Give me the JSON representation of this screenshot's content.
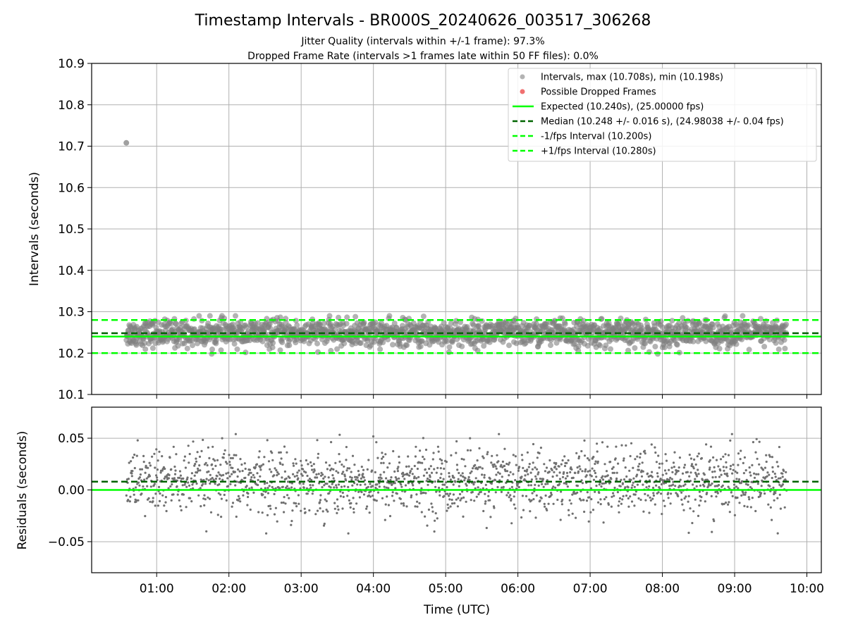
{
  "chart_data": [
    {
      "type": "scatter",
      "title": "Timestamp Intervals - BR000S_20240626_003517_306268",
      "subtitle_lines": [
        "Jitter Quality (intervals within +/-1 frame): 97.3%",
        "Dropped Frame Rate (intervals >1 frames late within 50 FF files): 0.0%"
      ],
      "ylabel": "Intervals (seconds)",
      "ylim": [
        10.1,
        10.9
      ],
      "yticks": [
        10.1,
        10.2,
        10.3,
        10.4,
        10.5,
        10.6,
        10.7,
        10.8,
        10.9
      ],
      "ytick_labels": [
        "10.1",
        "10.2",
        "10.3",
        "10.4",
        "10.5",
        "10.6",
        "10.7",
        "10.8",
        "10.9"
      ],
      "xlim_hours": [
        0.1,
        10.2
      ],
      "grid": true,
      "legend_position": "top-right",
      "series": [
        {
          "name": "Intervals, max (10.708s), min (10.198s)",
          "kind": "scatter",
          "color": "#808080",
          "x_range_hours": [
            0.58,
            9.72
          ],
          "center": 10.248,
          "spread": 0.016,
          "min": 10.198,
          "max": 10.708,
          "outliers": [
            {
              "x_hours": 0.58,
              "y": 10.708
            }
          ]
        },
        {
          "name": "Possible Dropped Frames",
          "kind": "scatter",
          "color": "#f07070",
          "points": []
        }
      ],
      "reference_lines": [
        {
          "name": "Expected (10.240s), (25.00000 fps)",
          "y": 10.24,
          "color": "#00ff00",
          "style": "solid"
        },
        {
          "name": "Median (10.248 +/- 0.016 s), (24.98038 +/- 0.04 fps)",
          "y": 10.248,
          "color": "#006400",
          "style": "dashed"
        },
        {
          "name": "-1/fps Interval (10.200s)",
          "y": 10.2,
          "color": "#00ff00",
          "style": "dashed"
        },
        {
          "name": "+1/fps Interval (10.280s)",
          "y": 10.28,
          "color": "#00ff00",
          "style": "dashed"
        }
      ]
    },
    {
      "type": "scatter",
      "ylabel": "Residuals (seconds)",
      "xlabel": "Time (UTC)",
      "ylim": [
        -0.08,
        0.08
      ],
      "yticks": [
        -0.05,
        0.0,
        0.05
      ],
      "ytick_labels": [
        "−0.05",
        "0.00",
        "0.05"
      ],
      "xlim_hours": [
        0.1,
        10.2
      ],
      "xticks_hours": [
        1,
        2,
        3,
        4,
        5,
        6,
        7,
        8,
        9,
        10
      ],
      "xtick_labels": [
        "01:00",
        "02:00",
        "03:00",
        "04:00",
        "05:00",
        "06:00",
        "07:00",
        "08:00",
        "09:00",
        "10:00"
      ],
      "grid": true,
      "series": [
        {
          "kind": "scatter",
          "color": "#707070",
          "x_range_hours": [
            0.58,
            9.72
          ],
          "center": 0.008,
          "spread": 0.016,
          "min": -0.042,
          "max": 0.054
        }
      ],
      "reference_lines": [
        {
          "y": 0.0,
          "color": "#00ff00",
          "style": "solid"
        },
        {
          "y": 0.008,
          "color": "#006400",
          "style": "dashed"
        }
      ]
    }
  ]
}
